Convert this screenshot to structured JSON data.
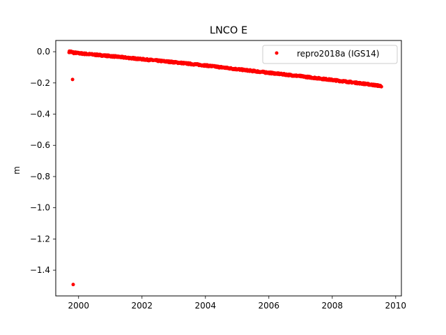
{
  "chart_data": {
    "type": "scatter",
    "title": "LNCO E",
    "xlabel": "",
    "ylabel": "m",
    "xlim": [
      1999.28,
      2010.18
    ],
    "ylim": [
      -1.565,
      0.072
    ],
    "xticks": [
      2000,
      2002,
      2004,
      2006,
      2008,
      2010
    ],
    "xtick_labels": [
      "2000",
      "2002",
      "2004",
      "2006",
      "2008",
      "2010"
    ],
    "yticks": [
      0.0,
      -0.2,
      -0.4,
      -0.6,
      -0.8,
      -1.0,
      -1.2,
      -1.4
    ],
    "ytick_labels": [
      "0.0",
      "−0.2",
      "−0.4",
      "−0.6",
      "−0.8",
      "−1.0",
      "−1.2",
      "−1.4"
    ],
    "grid": false,
    "legend_position": "top-right",
    "series": [
      {
        "name": "repro2018a (IGS14)",
        "color": "#ff0000",
        "marker": "dot",
        "trend": {
          "x": [
            1999.7,
            2000.0,
            2001.0,
            2002.0,
            2003.0,
            2004.0,
            2005.0,
            2006.0,
            2007.0,
            2008.0,
            2009.0,
            2009.55
          ],
          "y": [
            0.0,
            -0.01,
            -0.028,
            -0.048,
            -0.067,
            -0.088,
            -0.112,
            -0.135,
            -0.157,
            -0.181,
            -0.205,
            -0.22
          ]
        },
        "points": [
          {
            "x": 1999.76,
            "y": 0.003
          },
          {
            "x": 1999.8,
            "y": -0.005
          },
          {
            "x": 1999.85,
            "y": -0.012
          },
          {
            "x": 1999.81,
            "y": -0.178
          },
          {
            "x": 1999.83,
            "y": -1.492
          }
        ]
      }
    ]
  }
}
